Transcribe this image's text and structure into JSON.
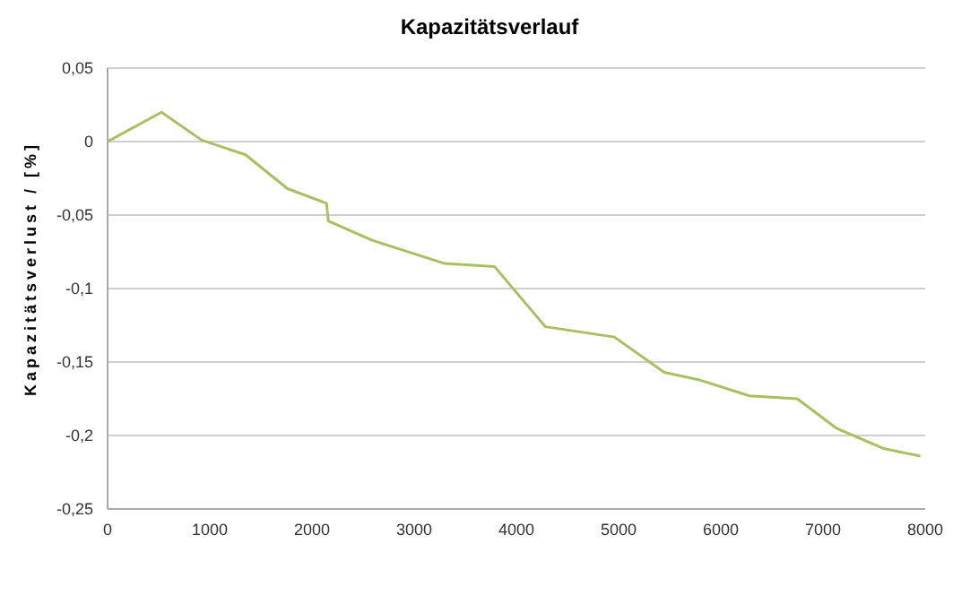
{
  "chart_data": {
    "type": "line",
    "title": "Kapazitätsverlauf",
    "ylabel": "Kapazitätsverlust / [%]",
    "x": [
      0,
      528,
      921,
      1350,
      1760,
      2142,
      2160,
      2582,
      3298,
      3785,
      4284,
      4959,
      5446,
      5781,
      6280,
      6748,
      7130,
      7600,
      7952
    ],
    "series": [
      {
        "color": "#a8c060",
        "values": [
          0,
          0.02,
          0.001,
          -0.009,
          -0.032,
          -0.042,
          -0.054,
          -0.067,
          -0.083,
          -0.085,
          -0.126,
          -0.133,
          -0.157,
          -0.162,
          -0.173,
          -0.175,
          -0.195,
          -0.209,
          -0.214
        ]
      }
    ],
    "xlim": [
      0,
      8000
    ],
    "xticks": [
      0,
      1000,
      2000,
      3000,
      4000,
      5000,
      6000,
      7000,
      8000
    ],
    "ylim": [
      -0.25,
      0.05
    ],
    "yticks": [
      {
        "value": 0.05,
        "label": "0,05"
      },
      0,
      {
        "value": -0.05,
        "label": "-0,05"
      },
      {
        "value": -0.1,
        "label": "-0,1"
      },
      {
        "value": -0.15,
        "label": "-0,15"
      },
      {
        "value": -0.2,
        "label": "-0,2"
      },
      {
        "value": -0.25,
        "label": "-0,25"
      }
    ],
    "grid": "y",
    "marker": "none",
    "line_style": "solid",
    "legend": false
  }
}
